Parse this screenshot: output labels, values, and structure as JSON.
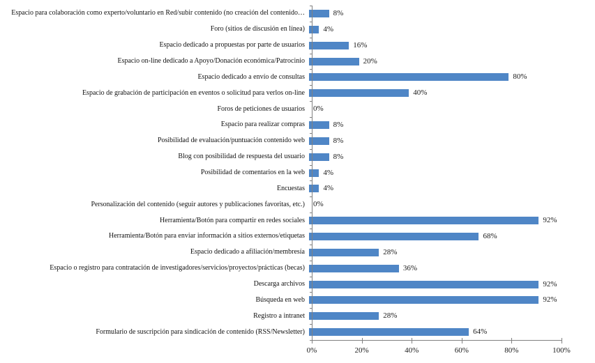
{
  "chart_data": {
    "type": "bar",
    "orientation": "horizontal",
    "title": "",
    "xlabel": "",
    "ylabel": "",
    "xlim": [
      0,
      100
    ],
    "grid": false,
    "legend_position": "none",
    "bar_color": "#4f86c6",
    "axis_color": "#808080",
    "categories": [
      "Espacio para colaboración como experto/voluntario en Red/subir contenido (no creación del contenido…",
      "Foro (sitios de discusión en línea)",
      "Espacio dedicado a propuestas por parte de usuarios",
      "Espacio on-line dedicado a Apoyo/Donación económica/Patrocinio",
      "Espacio dedicado a envío de consultas",
      "Espacio de grabación de participación en eventos o solicitud para verlos on-line",
      "Foros de peticiones de usuarios",
      "Espacio para realizar compras",
      "Posibilidad de evaluación/puntuación contenido web",
      "Blog con posibilidad de respuesta del usuario",
      "Posibilidad de comentarios en la web",
      "Encuestas",
      "Personalización del contenido (seguir autores y publicaciones favoritas, etc.)",
      "Herramienta/Botón para compartir en redes sociales",
      "Herramienta/Botón para enviar información a sitios externos/etiquetas",
      "Espacio dedicado a afiliación/membresía",
      "Espacio o registro para contratación de investigadores/servicios/proyectos/prácticas (becas)",
      "Descarga archivos",
      "Búsqueda en web",
      "Registro a intranet",
      "Formulario de suscripción para sindicación de contenido (RSS/Newsletter)"
    ],
    "values": [
      8,
      4,
      16,
      20,
      80,
      40,
      0,
      8,
      8,
      8,
      4,
      4,
      0,
      92,
      68,
      28,
      36,
      92,
      92,
      28,
      64
    ],
    "value_labels": [
      "8%",
      "4%",
      "16%",
      "20%",
      "80%",
      "40%",
      "0%",
      "8%",
      "8%",
      "8%",
      "4%",
      "4%",
      "0%",
      "92%",
      "68%",
      "28%",
      "36%",
      "92%",
      "92%",
      "28%",
      "64%"
    ],
    "x_ticks": [
      "0%",
      "20%",
      "40%",
      "60%",
      "80%",
      "100%"
    ]
  }
}
